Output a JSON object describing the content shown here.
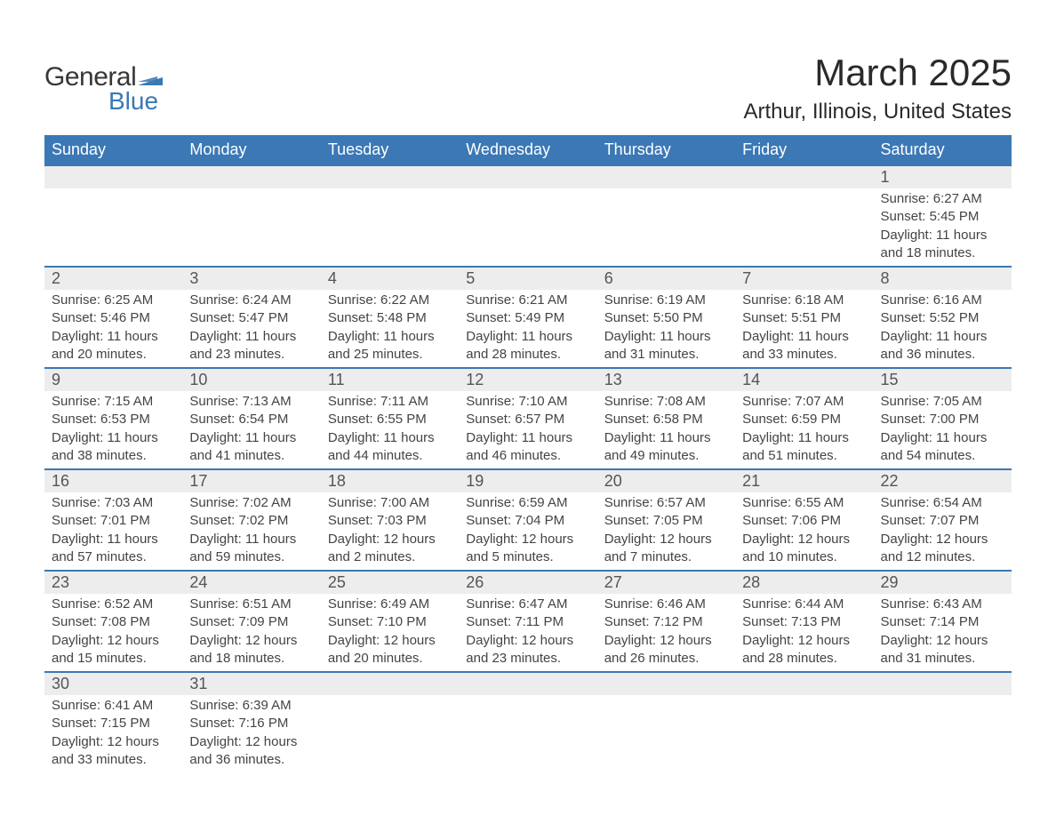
{
  "logo": {
    "text1": "General",
    "text2": "Blue",
    "flag_color": "#3b78b5"
  },
  "title": {
    "month": "March 2025",
    "location": "Arthur, Illinois, United States"
  },
  "colors": {
    "header_bg": "#3b78b5",
    "header_text": "#ffffff",
    "daynum_bg": "#ededed",
    "row_border": "#3b78b5",
    "body_text": "#444444"
  },
  "day_headers": [
    "Sunday",
    "Monday",
    "Tuesday",
    "Wednesday",
    "Thursday",
    "Friday",
    "Saturday"
  ],
  "weeks": [
    [
      null,
      null,
      null,
      null,
      null,
      null,
      {
        "n": "1",
        "sunrise": "Sunrise: 6:27 AM",
        "sunset": "Sunset: 5:45 PM",
        "dl1": "Daylight: 11 hours",
        "dl2": "and 18 minutes."
      }
    ],
    [
      {
        "n": "2",
        "sunrise": "Sunrise: 6:25 AM",
        "sunset": "Sunset: 5:46 PM",
        "dl1": "Daylight: 11 hours",
        "dl2": "and 20 minutes."
      },
      {
        "n": "3",
        "sunrise": "Sunrise: 6:24 AM",
        "sunset": "Sunset: 5:47 PM",
        "dl1": "Daylight: 11 hours",
        "dl2": "and 23 minutes."
      },
      {
        "n": "4",
        "sunrise": "Sunrise: 6:22 AM",
        "sunset": "Sunset: 5:48 PM",
        "dl1": "Daylight: 11 hours",
        "dl2": "and 25 minutes."
      },
      {
        "n": "5",
        "sunrise": "Sunrise: 6:21 AM",
        "sunset": "Sunset: 5:49 PM",
        "dl1": "Daylight: 11 hours",
        "dl2": "and 28 minutes."
      },
      {
        "n": "6",
        "sunrise": "Sunrise: 6:19 AM",
        "sunset": "Sunset: 5:50 PM",
        "dl1": "Daylight: 11 hours",
        "dl2": "and 31 minutes."
      },
      {
        "n": "7",
        "sunrise": "Sunrise: 6:18 AM",
        "sunset": "Sunset: 5:51 PM",
        "dl1": "Daylight: 11 hours",
        "dl2": "and 33 minutes."
      },
      {
        "n": "8",
        "sunrise": "Sunrise: 6:16 AM",
        "sunset": "Sunset: 5:52 PM",
        "dl1": "Daylight: 11 hours",
        "dl2": "and 36 minutes."
      }
    ],
    [
      {
        "n": "9",
        "sunrise": "Sunrise: 7:15 AM",
        "sunset": "Sunset: 6:53 PM",
        "dl1": "Daylight: 11 hours",
        "dl2": "and 38 minutes."
      },
      {
        "n": "10",
        "sunrise": "Sunrise: 7:13 AM",
        "sunset": "Sunset: 6:54 PM",
        "dl1": "Daylight: 11 hours",
        "dl2": "and 41 minutes."
      },
      {
        "n": "11",
        "sunrise": "Sunrise: 7:11 AM",
        "sunset": "Sunset: 6:55 PM",
        "dl1": "Daylight: 11 hours",
        "dl2": "and 44 minutes."
      },
      {
        "n": "12",
        "sunrise": "Sunrise: 7:10 AM",
        "sunset": "Sunset: 6:57 PM",
        "dl1": "Daylight: 11 hours",
        "dl2": "and 46 minutes."
      },
      {
        "n": "13",
        "sunrise": "Sunrise: 7:08 AM",
        "sunset": "Sunset: 6:58 PM",
        "dl1": "Daylight: 11 hours",
        "dl2": "and 49 minutes."
      },
      {
        "n": "14",
        "sunrise": "Sunrise: 7:07 AM",
        "sunset": "Sunset: 6:59 PM",
        "dl1": "Daylight: 11 hours",
        "dl2": "and 51 minutes."
      },
      {
        "n": "15",
        "sunrise": "Sunrise: 7:05 AM",
        "sunset": "Sunset: 7:00 PM",
        "dl1": "Daylight: 11 hours",
        "dl2": "and 54 minutes."
      }
    ],
    [
      {
        "n": "16",
        "sunrise": "Sunrise: 7:03 AM",
        "sunset": "Sunset: 7:01 PM",
        "dl1": "Daylight: 11 hours",
        "dl2": "and 57 minutes."
      },
      {
        "n": "17",
        "sunrise": "Sunrise: 7:02 AM",
        "sunset": "Sunset: 7:02 PM",
        "dl1": "Daylight: 11 hours",
        "dl2": "and 59 minutes."
      },
      {
        "n": "18",
        "sunrise": "Sunrise: 7:00 AM",
        "sunset": "Sunset: 7:03 PM",
        "dl1": "Daylight: 12 hours",
        "dl2": "and 2 minutes."
      },
      {
        "n": "19",
        "sunrise": "Sunrise: 6:59 AM",
        "sunset": "Sunset: 7:04 PM",
        "dl1": "Daylight: 12 hours",
        "dl2": "and 5 minutes."
      },
      {
        "n": "20",
        "sunrise": "Sunrise: 6:57 AM",
        "sunset": "Sunset: 7:05 PM",
        "dl1": "Daylight: 12 hours",
        "dl2": "and 7 minutes."
      },
      {
        "n": "21",
        "sunrise": "Sunrise: 6:55 AM",
        "sunset": "Sunset: 7:06 PM",
        "dl1": "Daylight: 12 hours",
        "dl2": "and 10 minutes."
      },
      {
        "n": "22",
        "sunrise": "Sunrise: 6:54 AM",
        "sunset": "Sunset: 7:07 PM",
        "dl1": "Daylight: 12 hours",
        "dl2": "and 12 minutes."
      }
    ],
    [
      {
        "n": "23",
        "sunrise": "Sunrise: 6:52 AM",
        "sunset": "Sunset: 7:08 PM",
        "dl1": "Daylight: 12 hours",
        "dl2": "and 15 minutes."
      },
      {
        "n": "24",
        "sunrise": "Sunrise: 6:51 AM",
        "sunset": "Sunset: 7:09 PM",
        "dl1": "Daylight: 12 hours",
        "dl2": "and 18 minutes."
      },
      {
        "n": "25",
        "sunrise": "Sunrise: 6:49 AM",
        "sunset": "Sunset: 7:10 PM",
        "dl1": "Daylight: 12 hours",
        "dl2": "and 20 minutes."
      },
      {
        "n": "26",
        "sunrise": "Sunrise: 6:47 AM",
        "sunset": "Sunset: 7:11 PM",
        "dl1": "Daylight: 12 hours",
        "dl2": "and 23 minutes."
      },
      {
        "n": "27",
        "sunrise": "Sunrise: 6:46 AM",
        "sunset": "Sunset: 7:12 PM",
        "dl1": "Daylight: 12 hours",
        "dl2": "and 26 minutes."
      },
      {
        "n": "28",
        "sunrise": "Sunrise: 6:44 AM",
        "sunset": "Sunset: 7:13 PM",
        "dl1": "Daylight: 12 hours",
        "dl2": "and 28 minutes."
      },
      {
        "n": "29",
        "sunrise": "Sunrise: 6:43 AM",
        "sunset": "Sunset: 7:14 PM",
        "dl1": "Daylight: 12 hours",
        "dl2": "and 31 minutes."
      }
    ],
    [
      {
        "n": "30",
        "sunrise": "Sunrise: 6:41 AM",
        "sunset": "Sunset: 7:15 PM",
        "dl1": "Daylight: 12 hours",
        "dl2": "and 33 minutes."
      },
      {
        "n": "31",
        "sunrise": "Sunrise: 6:39 AM",
        "sunset": "Sunset: 7:16 PM",
        "dl1": "Daylight: 12 hours",
        "dl2": "and 36 minutes."
      },
      null,
      null,
      null,
      null,
      null
    ]
  ]
}
